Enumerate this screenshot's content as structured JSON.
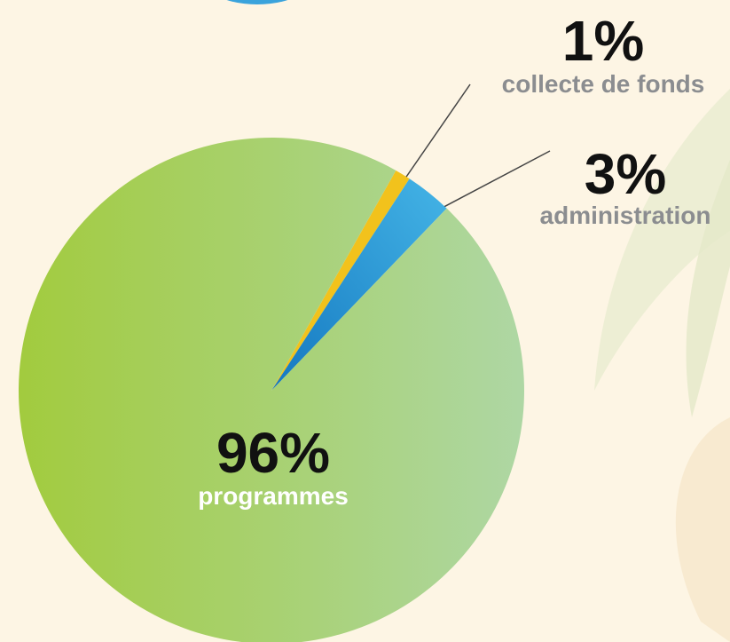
{
  "chart_data": {
    "type": "pie",
    "categories": [
      "programmes",
      "collecte de fonds",
      "administration"
    ],
    "values": [
      96,
      1,
      3
    ],
    "value_labels": [
      "96%",
      "1%",
      "3%"
    ],
    "colors": [
      "#a8d070",
      "#f2c21c",
      "#2a96d6"
    ]
  }
}
